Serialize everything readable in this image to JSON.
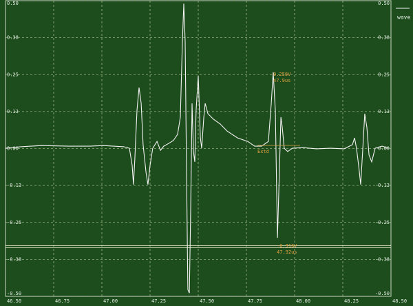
{
  "chart_data": {
    "type": "line",
    "x": [
      46.5,
      46.579,
      46.686,
      46.829,
      46.936,
      47.007,
      47.114,
      47.143,
      47.157,
      47.164,
      47.171,
      47.182,
      47.193,
      47.204,
      47.214,
      47.229,
      47.239,
      47.25,
      47.264,
      47.286,
      47.304,
      47.321,
      47.346,
      47.371,
      47.393,
      47.407,
      47.418,
      47.425,
      47.432,
      47.439,
      47.446,
      47.454,
      47.461,
      47.468,
      47.475,
      47.482,
      47.489,
      47.5,
      47.511,
      47.518,
      47.529,
      47.536,
      47.55,
      47.579,
      47.614,
      47.65,
      47.704,
      47.757,
      47.793,
      47.829,
      47.864,
      47.879,
      47.889,
      47.9,
      47.907,
      47.911,
      47.918,
      47.929,
      47.936,
      47.946,
      47.964,
      47.989,
      48.043,
      48.114,
      48.186,
      48.257,
      48.3,
      48.311,
      48.321,
      48.332,
      48.343,
      48.354,
      48.364,
      48.375,
      48.386,
      48.4,
      48.418,
      48.454,
      48.489
    ],
    "series": [
      {
        "name": "wave",
        "color": "#f2f2f2",
        "values": [
          0.001,
          0.006,
          0.01,
          0.008,
          0.008,
          0.01,
          0.006,
          0.001,
          -0.057,
          -0.122,
          -0.034,
          0.129,
          0.206,
          0.153,
          0.013,
          -0.08,
          -0.122,
          -0.057,
          0.001,
          0.024,
          -0.006,
          0.008,
          0.017,
          0.027,
          0.048,
          0.106,
          0.362,
          0.49,
          0.362,
          -0.057,
          -0.477,
          -0.489,
          -0.197,
          0.153,
          -0.01,
          -0.045,
          0.129,
          0.246,
          0.036,
          0.001,
          0.106,
          0.153,
          0.118,
          0.099,
          0.083,
          0.059,
          0.036,
          0.024,
          0.008,
          0.008,
          0.024,
          0.153,
          0.258,
          0.129,
          -0.15,
          -0.302,
          -0.15,
          0.106,
          0.071,
          0.001,
          -0.01,
          0.001,
          0.003,
          -0.001,
          0.001,
          -0.001,
          0.013,
          0.036,
          0.001,
          -0.057,
          -0.122,
          0.001,
          0.118,
          0.071,
          -0.022,
          -0.045,
          0.001,
          0.008,
          0.001
        ]
      }
    ],
    "xlim": [
      46.5,
      48.5
    ],
    "xticks": [
      {
        "value": 46.5,
        "label": "46.50"
      },
      46.75,
      {
        "value": 47,
        "label": "47.00"
      },
      47.25,
      {
        "value": 47.5,
        "label": "47.50"
      },
      47.75,
      {
        "value": 48,
        "label": "48.00"
      },
      48.25,
      {
        "value": 48.5,
        "label": "48.50"
      }
    ],
    "ylim": [
      -0.5,
      0.5
    ],
    "yticks": [
      {
        "value": 0.5,
        "label": "0.50"
      },
      {
        "value": 0.375,
        "label": "0.38"
      },
      0.25,
      {
        "value": 0.125,
        "label": "0.13"
      },
      {
        "value": 0,
        "label": "0.00"
      },
      {
        "value": -0.125,
        "label": "-0.13"
      },
      -0.25,
      {
        "value": -0.375,
        "label": "-0.38"
      },
      {
        "value": -0.5,
        "label": "-0.50"
      }
    ],
    "grid": true,
    "hlines": [
      -0.332
    ],
    "annotations": [
      {
        "text": "0.258V",
        "text2": "47.9us"
      },
      {
        "text": "-0.316V",
        "text2": "47.92us"
      },
      {
        "text": "Extd"
      }
    ]
  }
}
